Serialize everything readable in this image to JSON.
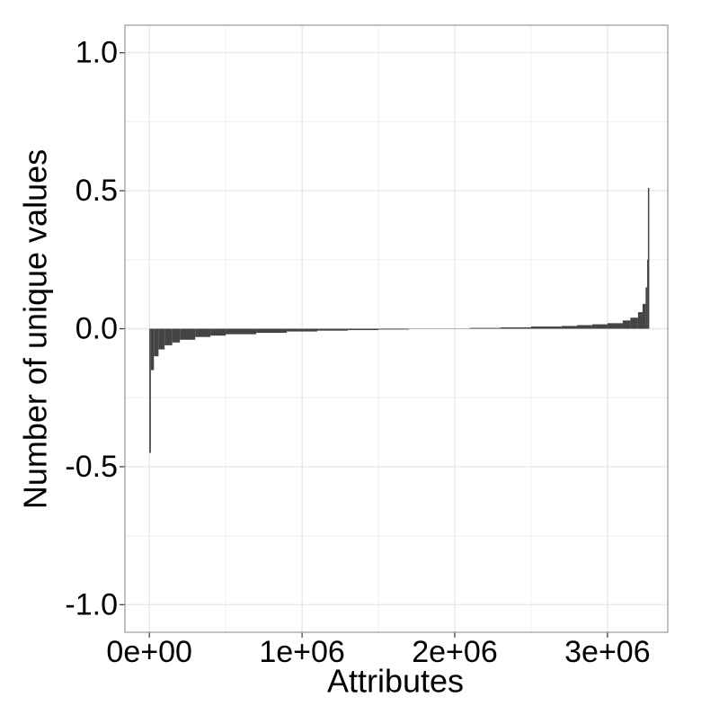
{
  "chart_data": {
    "type": "bar",
    "x_label": "Attributes",
    "y_label": "Number of unique values",
    "x": [
      0,
      10000,
      30000,
      60000,
      100000,
      150000,
      200000,
      300000,
      400000,
      500000,
      700000,
      900000,
      1100000,
      1300000,
      1500000,
      1700000,
      1900000,
      2100000,
      2300000,
      2500000,
      2700000,
      2800000,
      2900000,
      3000000,
      3100000,
      3150000,
      3200000,
      3230000,
      3250000,
      3260000,
      3265000
    ],
    "values": [
      -0.45,
      -0.15,
      -0.1,
      -0.075,
      -0.06,
      -0.05,
      -0.04,
      -0.03,
      -0.025,
      -0.02,
      -0.015,
      -0.01,
      -0.007,
      -0.005,
      -0.003,
      -0.001,
      0.001,
      0.003,
      0.005,
      0.008,
      0.01,
      0.013,
      0.016,
      0.02,
      0.03,
      0.04,
      0.06,
      0.09,
      0.15,
      0.25,
      0.51
    ],
    "color": "#444444",
    "xlim": [
      -160000,
      3395000
    ],
    "ylim": [
      -1.1,
      1.1
    ],
    "xticks": [
      {
        "value": 0,
        "label": "0e+00"
      },
      {
        "value": 1000000,
        "label": "1e+06"
      },
      {
        "value": 2000000,
        "label": "2e+06"
      },
      {
        "value": 3000000,
        "label": "3e+06"
      }
    ],
    "yticks": [
      {
        "value": -1,
        "label": "-1.0"
      },
      -0.5,
      {
        "value": 0,
        "label": "0.0"
      },
      0.5,
      {
        "value": 1,
        "label": "1.0"
      }
    ],
    "x_minor_ticks": [
      500000,
      1500000,
      2500000
    ],
    "y_minor_ticks": [
      -0.75,
      -0.25,
      0.25,
      0.75
    ],
    "grid": true
  }
}
